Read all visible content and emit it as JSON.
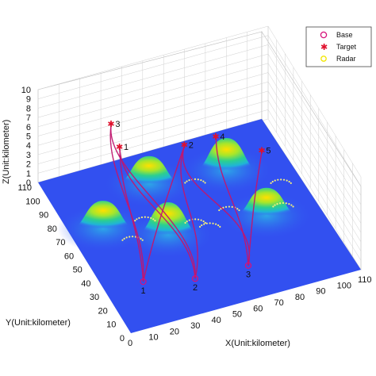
{
  "chart_data": {
    "type": "surface",
    "xlabel": "X(Unit:kilometer)",
    "ylabel": "Y(Unit:kilometer)",
    "zlabel": "Z(Unit:kilometer)",
    "xlim": [
      0,
      110
    ],
    "ylim": [
      0,
      110
    ],
    "zlim": [
      0,
      10
    ],
    "x_ticks": [
      "0",
      "10",
      "20",
      "30",
      "40",
      "50",
      "60",
      "70",
      "80",
      "90",
      "100",
      "110"
    ],
    "y_ticks": [
      "0",
      "10",
      "20",
      "30",
      "40",
      "50",
      "60",
      "70",
      "80",
      "90",
      "100",
      "110"
    ],
    "z_ticks": [
      "0",
      "1",
      "2",
      "3",
      "4",
      "5",
      "6",
      "7",
      "8",
      "9",
      "10"
    ],
    "grid": true,
    "legend": {
      "placement": "top-right",
      "entries": [
        {
          "label": "Base",
          "marker": "circle",
          "color": "#d6127a"
        },
        {
          "label": "Target",
          "marker": "asterisk",
          "color": "#e0102c"
        },
        {
          "label": "Radar",
          "marker": "circle",
          "color": "#f2e600"
        }
      ]
    },
    "terrain_color": "#3250f0",
    "peaks": [
      {
        "x": 45,
        "y": 90,
        "height": 3.0
      },
      {
        "x": 15,
        "y": 70,
        "height": 3.0
      },
      {
        "x": 80,
        "y": 85,
        "height": 3.5
      },
      {
        "x": 40,
        "y": 55,
        "height": 3.5
      },
      {
        "x": 85,
        "y": 50,
        "height": 3.0
      }
    ],
    "radars": [
      {
        "x": 25,
        "y": 60
      },
      {
        "x": 35,
        "y": 70
      },
      {
        "x": 55,
        "y": 60
      },
      {
        "x": 65,
        "y": 85
      },
      {
        "x": 60,
        "y": 55
      },
      {
        "x": 72,
        "y": 62
      },
      {
        "x": 95,
        "y": 55
      },
      {
        "x": 100,
        "y": 70
      }
    ],
    "bases": [
      {
        "label": "1",
        "x": 18,
        "y": 30,
        "z": 0
      },
      {
        "label": "2",
        "x": 40,
        "y": 23,
        "z": 0
      },
      {
        "label": "3",
        "x": 65,
        "y": 22,
        "z": 0
      }
    ],
    "targets": [
      {
        "label": "1",
        "x": 33,
        "y": 95,
        "z": 4
      },
      {
        "label": "2",
        "x": 60,
        "y": 85,
        "z": 4
      },
      {
        "label": "3",
        "x": 33,
        "y": 105,
        "z": 5
      },
      {
        "label": "4",
        "x": 75,
        "y": 85,
        "z": 4
      },
      {
        "label": "5",
        "x": 95,
        "y": 80,
        "z": 2
      }
    ],
    "paths": [
      {
        "from": "1",
        "to": "1"
      },
      {
        "from": "1",
        "to": "3"
      },
      {
        "from": "1",
        "to": "2"
      },
      {
        "from": "2",
        "to": "1"
      },
      {
        "from": "2",
        "to": "3"
      },
      {
        "from": "2",
        "to": "2"
      },
      {
        "from": "3",
        "to": "4"
      },
      {
        "from": "3",
        "to": "5"
      },
      {
        "from": "3",
        "to": "2"
      }
    ]
  }
}
